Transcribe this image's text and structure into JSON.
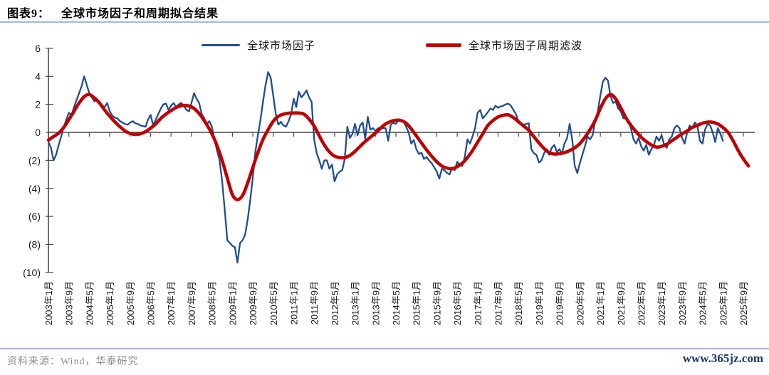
{
  "header": {
    "label": "图表9：",
    "title": "全球市场因子和周期拟合结果"
  },
  "footer": {
    "source": "资料来源：Wind，华泰研究",
    "watermark": "www.365jz.com"
  },
  "colors": {
    "factor_line": "#1F4E8C",
    "filter_line": "#C00000",
    "axis": "#4A4A4A",
    "tick_label": "#1A1A1A",
    "divider": "#A6BAD2",
    "source_text": "#8F8F8F",
    "watermark_text": "#17386E"
  },
  "legend": [
    {
      "label": "全球市场因子",
      "color": "#1F4E8C"
    },
    {
      "label": "全球市场因子周期滤波",
      "color": "#C00000"
    }
  ],
  "chart_data": {
    "type": "line",
    "title": "全球市场因子和周期拟合结果",
    "xlabel": "",
    "ylabel": "",
    "ylim": [
      -10,
      6
    ],
    "grid": false,
    "legend_position": "top",
    "y_ticks": [
      6,
      4,
      2,
      0,
      -2,
      -4,
      -6,
      -8,
      -10
    ],
    "y_tick_labels": [
      "6",
      "4",
      "2",
      "0",
      "(2)",
      "(4)",
      "(6)",
      "(8)",
      "(10)"
    ],
    "x_tick_interval_months": 8,
    "x_tick_labels": [
      "2003年1月",
      "2003年9月",
      "2004年5月",
      "2005年1月",
      "2005年9月",
      "2006年5月",
      "2007年1月",
      "2007年9月",
      "2008年5月",
      "2009年1月",
      "2009年9月",
      "2010年5月",
      "2011年1月",
      "2011年9月",
      "2012年5月",
      "2013年1月",
      "2013年9月",
      "2014年5月",
      "2015年1月",
      "2015年9月",
      "2016年5月",
      "2017年1月",
      "2017年9月",
      "2018年5月",
      "2019年1月",
      "2019年9月",
      "2020年5月",
      "2021年1月",
      "2021年9月",
      "2022年5月",
      "2023年1月",
      "2023年9月",
      "2024年5月",
      "2025年1月",
      "2025年9月"
    ],
    "series": [
      {
        "name": "全球市场因子",
        "color": "#1F4E8C",
        "width": 2.3,
        "smooth": false,
        "start": "2003-01",
        "interval_months": 1,
        "values": [
          -0.7,
          -1.1,
          -2.0,
          -1.6,
          -0.9,
          -0.3,
          0.4,
          0.9,
          1.4,
          1.2,
          1.8,
          2.3,
          2.8,
          3.3,
          4.0,
          3.4,
          2.8,
          2.5,
          2.2,
          2.4,
          2.1,
          1.9,
          1.8,
          2.1,
          1.5,
          1.2,
          1.05,
          1.0,
          0.8,
          0.7,
          0.6,
          0.55,
          0.7,
          0.8,
          0.65,
          0.6,
          0.5,
          0.45,
          0.4,
          0.9,
          1.25,
          0.5,
          0.9,
          1.3,
          1.7,
          2.0,
          2.05,
          1.6,
          1.9,
          2.1,
          1.8,
          2.0,
          2.1,
          1.9,
          1.6,
          1.5,
          2.1,
          2.8,
          2.4,
          2.1,
          1.3,
          1.0,
          0.6,
          0.8,
          0.4,
          -0.5,
          -1.3,
          -2.0,
          -3.5,
          -5.5,
          -7.7,
          -7.9,
          -8.1,
          -8.2,
          -9.3,
          -7.9,
          -7.7,
          -7.3,
          -6.2,
          -4.8,
          -3.2,
          -1.4,
          -0.2,
          0.9,
          2.2,
          3.4,
          4.3,
          3.9,
          2.6,
          1.3,
          0.55,
          0.75,
          0.5,
          0.4,
          0.8,
          1.3,
          2.4,
          1.8,
          2.9,
          2.5,
          2.7,
          3.0,
          2.5,
          2.2,
          -0.5,
          -1.5,
          -2.0,
          -2.6,
          -2.0,
          -2.0,
          -2.6,
          -2.3,
          -3.5,
          -3.0,
          -2.8,
          -2.7,
          -1.9,
          0.4,
          -0.4,
          -0.1,
          0.6,
          -0.2,
          0.5,
          0.7,
          -0.45,
          1.1,
          0.2,
          0.3,
          0.1,
          0.3,
          0.25,
          0.3,
          0.3,
          -0.6,
          0.55,
          0.7,
          0.6,
          0.9,
          0.85,
          0.8,
          0.4,
          0.0,
          -0.8,
          -0.55,
          -1.2,
          -1.55,
          -1.45,
          -1.9,
          -1.75,
          -2.0,
          -2.2,
          -2.5,
          -2.8,
          -3.3,
          -2.6,
          -2.7,
          -2.9,
          -3.0,
          -2.5,
          -2.7,
          -2.1,
          -2.3,
          -2.4,
          -1.7,
          -0.5,
          -0.8,
          -0.3,
          0.3,
          1.4,
          1.6,
          1.0,
          1.2,
          1.45,
          1.7,
          1.6,
          1.9,
          1.75,
          1.85,
          1.9,
          2.0,
          2.05,
          1.9,
          1.6,
          1.3,
          0.8,
          0.6,
          0.55,
          0.6,
          0.65,
          -1.2,
          -1.5,
          -1.6,
          -2.15,
          -2.0,
          -1.5,
          -1.2,
          -1.6,
          -1.1,
          -0.9,
          -1.4,
          -1.2,
          -1.5,
          -0.8,
          -0.4,
          0.6,
          -0.5,
          -2.4,
          -2.9,
          -2.2,
          -1.6,
          -1.0,
          -0.3,
          -0.5,
          -0.2,
          0.8,
          1.5,
          2.6,
          3.6,
          3.9,
          3.7,
          2.6,
          2.1,
          2.2,
          1.7,
          1.5,
          1.0,
          1.0,
          0.8,
          0.3,
          -0.5,
          -0.8,
          -0.4,
          -1.0,
          -1.3,
          -0.9,
          -1.6,
          -1.2,
          -0.9,
          -0.3,
          -0.6,
          -0.2,
          -0.9,
          -1.1,
          -0.5,
          -0.3,
          0.3,
          0.5,
          0.3,
          -0.4,
          -0.8,
          0.0,
          0.5,
          0.3,
          0.7,
          0.5,
          -0.6,
          -0.8,
          0.2,
          0.6,
          0.5,
          0.0,
          -0.7,
          0.3,
          -0.1,
          -0.6
        ]
      },
      {
        "name": "全球市场因子周期滤波",
        "color": "#C00000",
        "width": 4.6,
        "smooth": true,
        "start": "2003-01",
        "interval_months": 2,
        "values": [
          -0.55,
          -0.3,
          -0.05,
          0.35,
          0.9,
          1.5,
          2.1,
          2.55,
          2.7,
          2.45,
          2.1,
          1.6,
          1.15,
          0.75,
          0.4,
          0.1,
          -0.08,
          -0.15,
          -0.1,
          0.05,
          0.3,
          0.6,
          1.0,
          1.3,
          1.55,
          1.78,
          1.9,
          1.92,
          1.82,
          1.55,
          1.1,
          0.55,
          -0.1,
          -0.95,
          -2.0,
          -3.25,
          -4.45,
          -4.8,
          -4.5,
          -3.6,
          -2.5,
          -1.45,
          -0.5,
          0.2,
          0.8,
          1.15,
          1.3,
          1.37,
          1.38,
          1.38,
          1.3,
          0.95,
          0.45,
          -0.25,
          -0.9,
          -1.4,
          -1.7,
          -1.8,
          -1.8,
          -1.65,
          -1.35,
          -1.0,
          -0.65,
          -0.35,
          -0.05,
          0.3,
          0.6,
          0.78,
          0.87,
          0.85,
          0.65,
          0.25,
          -0.25,
          -0.75,
          -1.25,
          -1.7,
          -2.1,
          -2.4,
          -2.55,
          -2.6,
          -2.45,
          -2.2,
          -1.8,
          -1.3,
          -0.7,
          -0.1,
          0.5,
          0.85,
          1.1,
          1.22,
          1.25,
          1.05,
          0.75,
          0.45,
          0.15,
          -0.3,
          -0.75,
          -1.15,
          -1.45,
          -1.55,
          -1.52,
          -1.45,
          -1.3,
          -1.1,
          -0.8,
          -0.35,
          0.2,
          0.85,
          1.7,
          2.4,
          2.7,
          2.4,
          1.75,
          1.05,
          0.5,
          0.05,
          -0.35,
          -0.65,
          -0.9,
          -1.05,
          -1.0,
          -0.85,
          -0.6,
          -0.35,
          -0.1,
          0.1,
          0.35,
          0.5,
          0.65,
          0.73,
          0.72,
          0.6,
          0.35,
          0.0,
          -0.6,
          -1.3,
          -1.9,
          -2.4
        ]
      }
    ]
  }
}
